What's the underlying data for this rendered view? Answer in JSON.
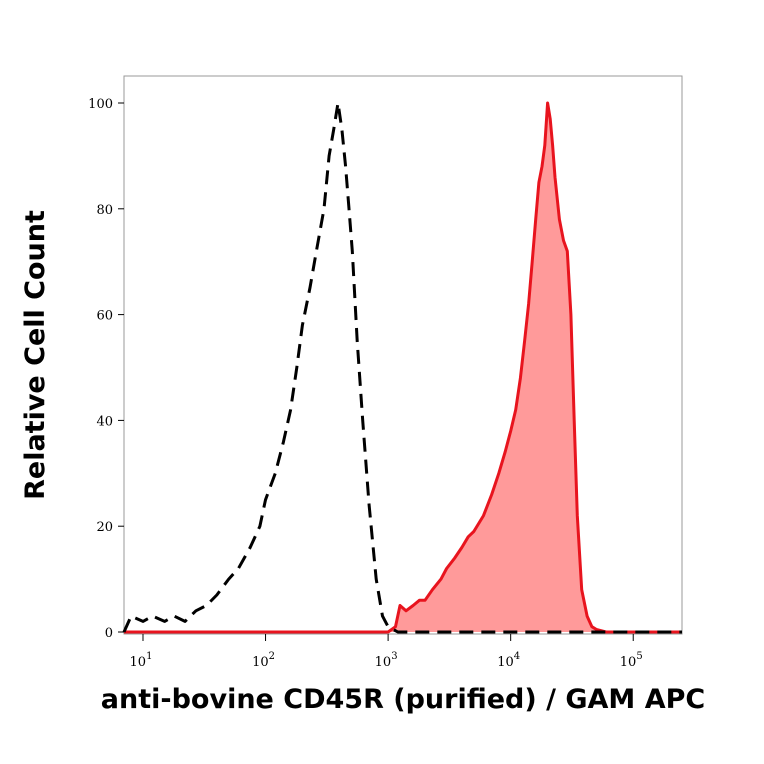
{
  "chart_data": {
    "type": "area",
    "title": "",
    "xlabel": "anti-bovine CD45R (purified) / GAM APC",
    "ylabel": "Relative Cell Count",
    "x_scale": "log",
    "xlim": [
      7,
      250000
    ],
    "ylim": [
      0,
      100
    ],
    "grid": false,
    "legend": "none",
    "x_ticks": [
      {
        "value": 10,
        "base": "10",
        "exp": "1"
      },
      {
        "value": 100,
        "base": "10",
        "exp": "2"
      },
      {
        "value": 1000,
        "base": "10",
        "exp": "3"
      },
      {
        "value": 10000,
        "base": "10",
        "exp": "4"
      },
      {
        "value": 100000,
        "base": "10",
        "exp": "5"
      }
    ],
    "y_ticks": [
      0,
      20,
      40,
      60,
      80,
      100
    ],
    "series": [
      {
        "style": "dashed",
        "color": "#000000",
        "fill": "none",
        "x": [
          7,
          8,
          10,
          12,
          15,
          18,
          22,
          27,
          33,
          40,
          50,
          60,
          75,
          90,
          100,
          120,
          140,
          160,
          180,
          200,
          230,
          260,
          300,
          330,
          360,
          390,
          420,
          450,
          480,
          510,
          560,
          620,
          700,
          800,
          900,
          1000,
          1100,
          1200,
          1500,
          2000,
          5000,
          20000,
          100000,
          250000
        ],
        "y": [
          0,
          3,
          2,
          3,
          2,
          3,
          2,
          4,
          5,
          7,
          10,
          12,
          16,
          20,
          25,
          30,
          36,
          42,
          50,
          58,
          65,
          72,
          80,
          90,
          95,
          100,
          95,
          88,
          80,
          72,
          55,
          40,
          24,
          10,
          3,
          1,
          0.5,
          0,
          0,
          0,
          0,
          0,
          0,
          0
        ]
      },
      {
        "style": "solid",
        "color": "#e8141e",
        "fill": "#ff9a9a",
        "x": [
          7,
          1000,
          1150,
          1250,
          1400,
          1600,
          1800,
          2000,
          2300,
          2700,
          3000,
          3500,
          4000,
          4500,
          5000,
          6000,
          7000,
          8000,
          9000,
          10000,
          11000,
          12000,
          13000,
          14000,
          15000,
          16000,
          17000,
          18000,
          19000,
          20000,
          21000,
          22000,
          23000,
          25000,
          27000,
          29000,
          31000,
          33000,
          35000,
          38000,
          42000,
          46000,
          50000,
          60000,
          100000,
          250000
        ],
        "y": [
          0,
          0,
          1,
          5,
          4,
          5,
          6,
          6,
          8,
          10,
          12,
          14,
          16,
          18,
          19,
          22,
          26,
          30,
          34,
          38,
          42,
          48,
          55,
          62,
          70,
          78,
          85,
          88,
          92,
          100,
          97,
          92,
          86,
          78,
          74,
          72,
          60,
          40,
          22,
          8,
          3,
          1,
          0.5,
          0,
          0,
          0
        ]
      }
    ]
  }
}
